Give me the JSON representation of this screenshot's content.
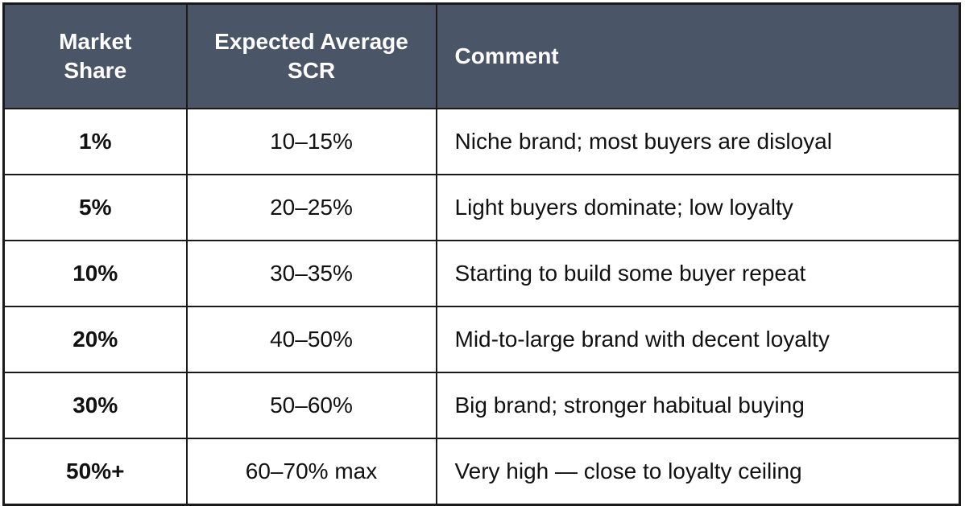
{
  "table": {
    "header": [
      "Market Share",
      "Expected Average SCR",
      "Comment"
    ],
    "rows": [
      [
        "1%",
        "10–15%",
        "Niche brand; most buyers are disloyal"
      ],
      [
        "5%",
        "20–25%",
        "Light buyers dominate; low loyalty"
      ],
      [
        "10%",
        "30–35%",
        "Starting to build some buyer repeat"
      ],
      [
        "20%",
        "40–50%",
        "Mid-to-large brand with decent loyalty"
      ],
      [
        "30%",
        "50–60%",
        "Big brand; stronger habitual buying"
      ],
      [
        "50%+",
        "60–70% max",
        "Very high — close to loyalty ceiling"
      ]
    ]
  }
}
